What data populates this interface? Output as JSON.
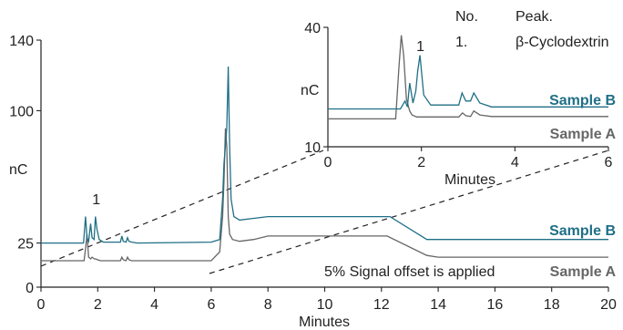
{
  "chart_data": {
    "type": "line",
    "main": {
      "xlabel": "Minutes",
      "ylabel": "nC",
      "xlim": [
        0,
        20
      ],
      "ylim": [
        0,
        140
      ],
      "xticks": [
        0,
        2,
        4,
        6,
        8,
        10,
        12,
        14,
        16,
        18,
        20
      ],
      "yticks": [
        0,
        25,
        100,
        140
      ],
      "peak_label": "1",
      "peak_label_x": 1.95,
      "series": [
        {
          "name": "Sample B",
          "color": "#1f6f86",
          "x": [
            0,
            1.5,
            1.57,
            1.62,
            1.68,
            1.75,
            1.8,
            1.87,
            1.92,
            1.97,
            2.05,
            2.2,
            2.8,
            2.85,
            2.9,
            3.0,
            3.05,
            3.1,
            3.2,
            3.4,
            6.0,
            6.3,
            6.4,
            6.45,
            6.5,
            6.55,
            6.6,
            6.65,
            6.7,
            6.8,
            7.0,
            7.5,
            8.0,
            12.3,
            13.6,
            14.0,
            20
          ],
          "y": [
            25,
            25,
            40,
            28,
            26,
            36,
            28,
            27,
            40,
            33,
            27,
            25.5,
            25.5,
            29,
            26,
            25.5,
            28,
            26,
            25.5,
            25,
            25.5,
            27,
            50,
            70,
            80,
            90,
            125,
            80,
            50,
            40,
            38,
            39,
            40,
            40,
            27,
            27,
            27
          ]
        },
        {
          "name": "Sample A",
          "color": "#666666",
          "x": [
            0,
            1.52,
            1.58,
            1.62,
            1.68,
            1.75,
            1.8,
            1.88,
            1.93,
            2.0,
            2.1,
            2.8,
            2.85,
            2.9,
            3.0,
            3.05,
            3.1,
            3.2,
            3.4,
            6.0,
            6.3,
            6.4,
            6.45,
            6.5,
            6.55,
            6.6,
            6.65,
            6.75,
            7.0,
            7.5,
            8.0,
            12.2,
            13.6,
            14.0,
            20
          ],
          "y": [
            15,
            15,
            23,
            30,
            17,
            16,
            17,
            16,
            16,
            15.5,
            15,
            15,
            17,
            15.5,
            15,
            17,
            15.5,
            15,
            15,
            15,
            20,
            40,
            60,
            90,
            80,
            40,
            30,
            27,
            26,
            27,
            29,
            29,
            18,
            17,
            17
          ]
        }
      ]
    },
    "inset": {
      "xlabel": "Minutes",
      "ylabel": "nC",
      "xlim": [
        0,
        6
      ],
      "ylim": [
        10,
        40
      ],
      "xticks": [
        0,
        2,
        4,
        6
      ],
      "yticks": [
        10,
        40
      ],
      "peak_label": "1",
      "peak_label_x": 1.98,
      "series": [
        {
          "name": "Sample B",
          "color": "#1f6f86",
          "x": [
            0,
            1.55,
            1.65,
            1.7,
            1.75,
            1.82,
            1.88,
            1.92,
            1.97,
            2.05,
            2.2,
            2.8,
            2.87,
            2.95,
            3.05,
            3.12,
            3.25,
            3.5,
            6
          ],
          "y": [
            19.5,
            19.5,
            21.5,
            20,
            26,
            21,
            24,
            29,
            33,
            23,
            20.5,
            20.5,
            23.5,
            21.5,
            21.5,
            23.5,
            21,
            20,
            20
          ]
        },
        {
          "name": "Sample A",
          "color": "#666666",
          "x": [
            0,
            1.45,
            1.52,
            1.57,
            1.62,
            1.68,
            1.75,
            1.8,
            1.9,
            2.1,
            2.8,
            2.88,
            2.95,
            3.05,
            3.12,
            3.25,
            3.5,
            6
          ],
          "y": [
            17,
            17,
            30,
            38,
            33,
            22,
            19,
            18,
            17.5,
            17.5,
            17.5,
            18.5,
            17.8,
            17.6,
            19,
            18,
            17.6,
            17.6
          ]
        }
      ]
    },
    "table": {
      "header": [
        "No.",
        "Peak."
      ],
      "rows": [
        [
          "1.",
          "β-Cyclodextrin"
        ]
      ]
    },
    "annotation": "5% Signal offset is applied",
    "legend": {
      "sample_b": "Sample B",
      "sample_a": "Sample A"
    }
  }
}
